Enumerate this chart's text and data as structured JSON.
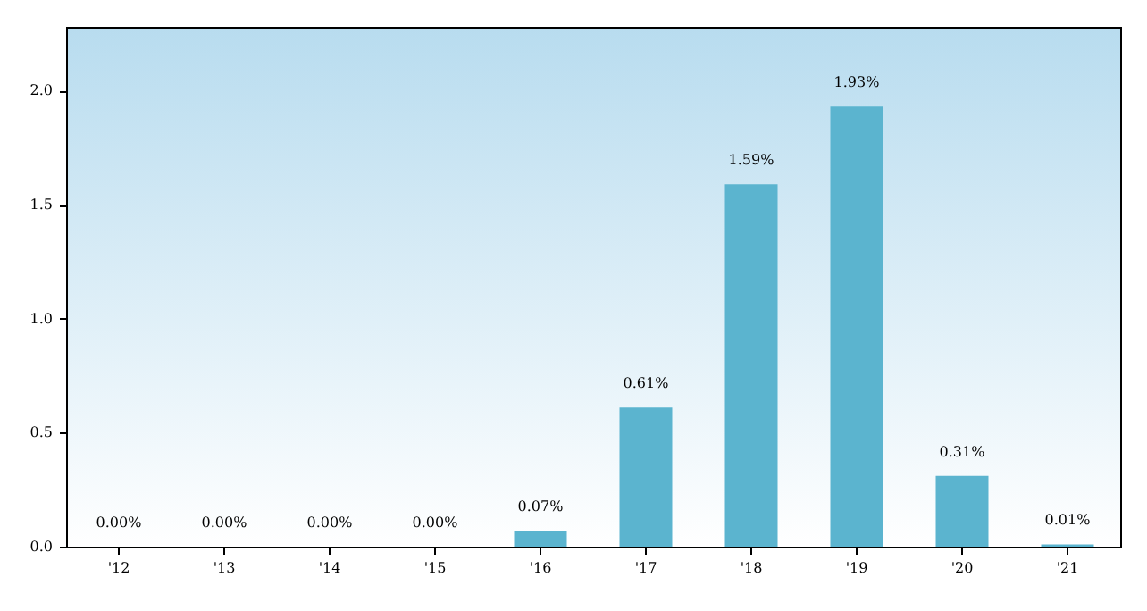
{
  "chart_data": {
    "type": "bar",
    "categories": [
      "'12",
      "'13",
      "'14",
      "'15",
      "'16",
      "'17",
      "'18",
      "'19",
      "'20",
      "'21"
    ],
    "values": [
      0,
      0,
      0,
      0,
      0.07,
      0.61,
      1.59,
      1.93,
      0.31,
      0.01
    ],
    "value_labels": [
      "0.00%",
      "0.00%",
      "0.00%",
      "0.00%",
      "0.07%",
      "0.61%",
      "1.59%",
      "1.93%",
      "0.31%",
      "0.01%"
    ],
    "color": "#5bb4cf",
    "ylim": [
      0,
      2.28
    ],
    "yticks": [
      {
        "value": 0,
        "label": "0.0"
      },
      0.5,
      {
        "value": 1,
        "label": "1.0"
      },
      1.5,
      {
        "value": 2,
        "label": "2.0"
      }
    ],
    "grid": false
  }
}
